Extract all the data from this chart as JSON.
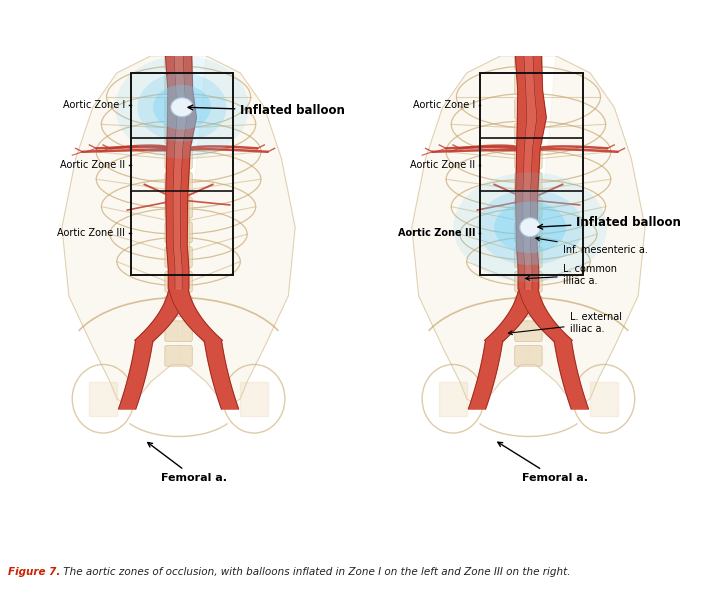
{
  "figure_caption_bold": "Figure 7.",
  "figure_caption_text": " The aortic zones of occlusion, with balloons inflated in Zone I on the left and Zone III on the right.",
  "background_color": "#ffffff",
  "aorta_color": "#c0392b",
  "aorta_mid": "#d44f3f",
  "aorta_light": "#e07060",
  "aorta_dark": "#7b1a12",
  "bone_color": "#e8d5b0",
  "bone_edge": "#c8a870",
  "zone_box_color": "#111111",
  "balloon_glow": "#6ecff6",
  "balloon_body": "#d8eff8",
  "label_bold_left": [
    "Aortic Zone I",
    "Aortic Zone II",
    "Aortic Zone III"
  ],
  "label_bold_right": [
    "Aortic Zone I",
    "Aortic Zone II",
    "Aortic Zone III"
  ]
}
